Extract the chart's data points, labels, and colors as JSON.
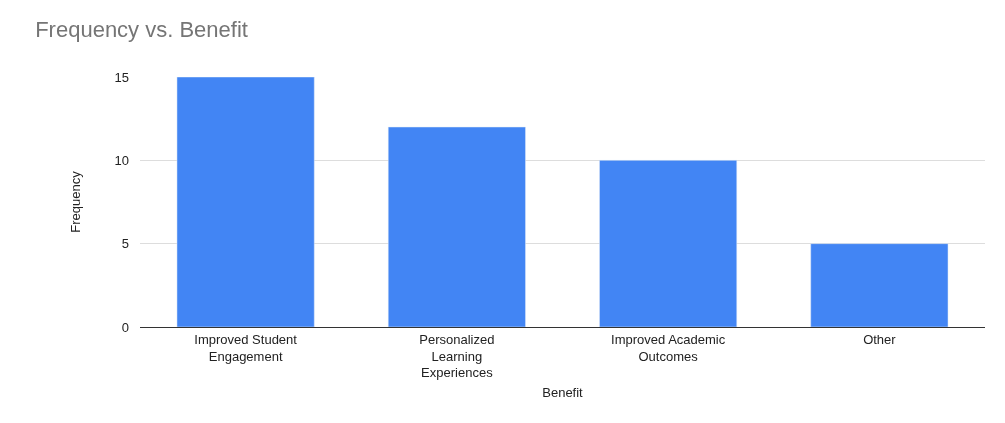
{
  "chart_data": {
    "type": "bar",
    "title": "Frequency vs. Benefit",
    "xlabel": "Benefit",
    "ylabel": "Frequency",
    "categories": [
      "Improved Student Engagement",
      "Personalized Learning Experiences",
      "Improved Academic Outcomes",
      "Other"
    ],
    "values": [
      15,
      12,
      10,
      5
    ],
    "color": "#4285f4",
    "ylim": [
      0,
      15
    ],
    "yticks": [
      0,
      5,
      10,
      15
    ],
    "grid": "y"
  }
}
